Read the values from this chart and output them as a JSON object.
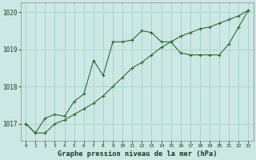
{
  "title": "Graphe pression niveau de la mer (hPa)",
  "bg_color": "#cce8e4",
  "grid_color": "#aad4ce",
  "line_color": "#2d6a2d",
  "xlim": [
    -0.5,
    23.5
  ],
  "ylim": [
    1016.55,
    1020.25
  ],
  "yticks": [
    1017,
    1018,
    1019,
    1020
  ],
  "xticks": [
    0,
    1,
    2,
    3,
    4,
    5,
    6,
    7,
    8,
    9,
    10,
    11,
    12,
    13,
    14,
    15,
    16,
    17,
    18,
    19,
    20,
    21,
    22,
    23
  ],
  "series1_x": [
    0,
    1,
    2,
    3,
    4,
    5,
    6,
    7,
    8,
    9,
    10,
    11,
    12,
    13,
    14,
    15,
    16,
    17,
    18,
    19,
    20,
    21,
    22,
    23
  ],
  "series1_y": [
    1017.0,
    1016.75,
    1016.75,
    1017.0,
    1017.1,
    1017.25,
    1017.4,
    1017.55,
    1017.75,
    1018.0,
    1018.25,
    1018.5,
    1018.65,
    1018.85,
    1019.05,
    1019.2,
    1019.35,
    1019.45,
    1019.55,
    1019.6,
    1019.7,
    1019.8,
    1019.9,
    1020.05
  ],
  "series2_x": [
    0,
    1,
    2,
    3,
    4,
    5,
    6,
    7,
    8,
    9,
    10,
    11,
    12,
    13,
    14,
    15,
    16,
    17,
    18,
    19,
    20,
    21,
    22,
    23
  ],
  "series2_y": [
    1017.0,
    1016.75,
    1017.15,
    1017.25,
    1017.2,
    1017.6,
    1017.8,
    1018.7,
    1018.3,
    1019.2,
    1019.2,
    1019.25,
    1019.5,
    1019.45,
    1019.2,
    1019.2,
    1018.9,
    1018.85,
    1018.85,
    1018.85,
    1018.85,
    1019.15,
    1019.6,
    1020.05
  ]
}
